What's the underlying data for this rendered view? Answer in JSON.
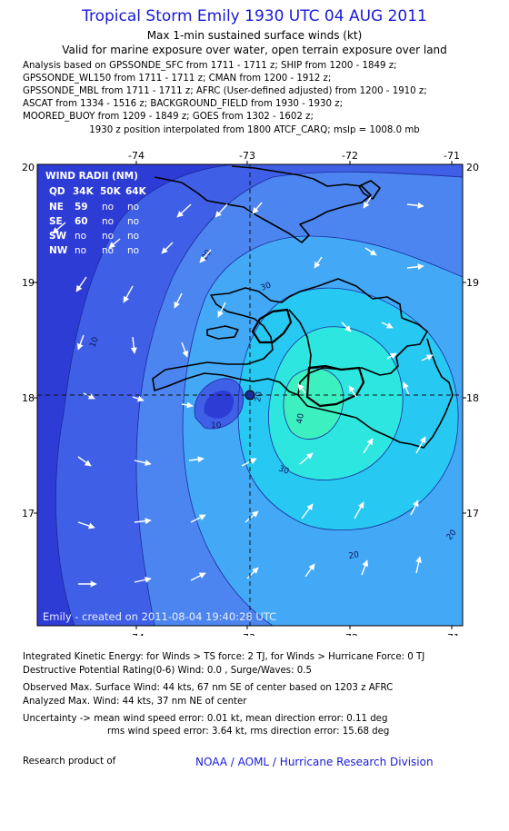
{
  "header": {
    "title": "Tropical Storm Emily 1930 UTC 04 AUG 2011",
    "subtitle": "Max 1-min sustained surface winds (kt)",
    "validity": "Valid for marine exposure over water, open terrain exposure over land",
    "analysis_lines": [
      "Analysis based on GPSSONDE_SFC from 1711 - 1711 z; SHIP from 1200 - 1849 z;",
      "GPSSONDE_WL150 from 1711 - 1711 z; CMAN from 1200 - 1912 z;",
      "GPSSONDE_MBL from 1711 - 1711 z; AFRC (User-defined adjusted) from 1200 - 1910 z;",
      "ASCAT from 1334 - 1516 z; BACKGROUND_FIELD from 1930 - 1930 z;",
      "MOORED_BUOY from 1209 - 1849 z; GOES from 1302 - 1602 z;"
    ],
    "position_note": "1930 z position interpolated from 1800 ATCF_CARQ; mslp = 1008.0 mb"
  },
  "map": {
    "lon_labels": [
      "-74",
      "-73",
      "-72",
      "-71"
    ],
    "lat_labels": [
      "20",
      "19",
      "18",
      "17"
    ],
    "contour_labels": [
      "10",
      "20",
      "30",
      "40"
    ],
    "wind_radii": {
      "title": "WIND RADII (NM)",
      "headers": [
        "QD",
        "34K",
        "50K",
        "64K"
      ],
      "rows": [
        [
          "NE",
          "59",
          "no",
          "no"
        ],
        [
          "SE",
          "60",
          "no",
          "no"
        ],
        [
          "SW",
          "no",
          "no",
          "no"
        ],
        [
          "NW",
          "no",
          "no",
          "no"
        ]
      ]
    },
    "watermark": "Emily - created on 2011-08-04 19:40:28 UTC",
    "colors": {
      "lvl0": "#2e3cd6",
      "lvl1": "#3f60e6",
      "lvl2": "#4c85f0",
      "lvl3": "#43a9f7",
      "lvl4": "#27c8f2",
      "lvl5": "#2ee6e0",
      "lvl6": "#3df0c0"
    }
  },
  "footer": {
    "ike": "Integrated Kinetic Energy:  for Winds > TS force: 2 TJ,  for Winds > Hurricane Force: 0 TJ",
    "dpr": "Destructive Potential Rating(0-6)   Wind: 0.0 , Surge/Waves: 0.5",
    "observed": "Observed Max. Surface Wind: 44 kts, 67 nm SE of center based on 1203 z AFRC",
    "analyzed": "Analyzed Max. Wind: 44 kts, 37 nm NE of center",
    "uncertainty1": "Uncertainty -> mean wind speed error: 0.01 kt,   mean direction error: 0.11 deg",
    "uncertainty2": "rms wind speed error: 3.64 kt,   rms direction error: 15.68 deg",
    "research": "Research product of",
    "credit": "NOAA / AOML / Hurricane Research Division"
  }
}
